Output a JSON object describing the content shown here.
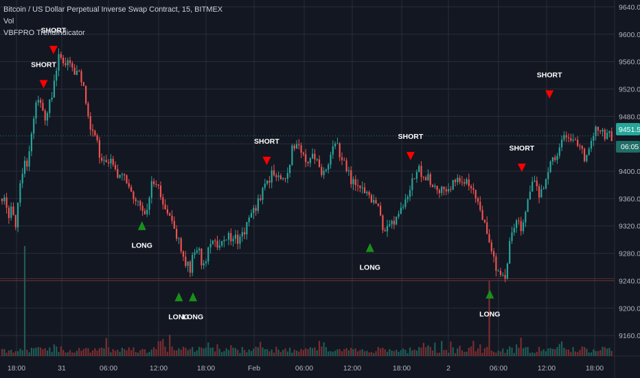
{
  "legend": {
    "symbol": "Bitcoin / US Dollar Perpetual Inverse Swap Contract, 15, BITMEX",
    "volume": "Vol",
    "indicator": "VBFPRO TrendIndicator"
  },
  "badges": {
    "last_price": "9451.5",
    "countdown": "06:05"
  },
  "colors": {
    "background": "#131722",
    "grid": "#2a2e39",
    "up": "#26a69a",
    "down": "#ef5350",
    "vol_up": "#1f5d56",
    "vol_down": "#7a2e30",
    "short_marker": "#ff0000",
    "long_marker": "#1b8f1b",
    "price_badge": "#26a69a",
    "axis_text": "#b2b5be"
  },
  "chart_data": {
    "type": "candlestick",
    "title": "Bitcoin / US Dollar Perpetual Inverse Swap Contract, 15, BITMEX",
    "ylim": [
      9130,
      9650
    ],
    "y_ticks": [
      9160.0,
      9200.0,
      9240.0,
      9280.0,
      9320.0,
      9360.0,
      9400.0,
      9440.0,
      9480.0,
      9520.0,
      9560.0,
      9600.0,
      9640.0
    ],
    "x_ticks": [
      "18:00",
      "31",
      "06:00",
      "12:00",
      "18:00",
      "Feb",
      "06:00",
      "12:00",
      "18:00",
      "2",
      "06:00",
      "12:00",
      "18:00"
    ],
    "price_path": [
      [
        0,
        9360
      ],
      [
        8,
        9370
      ],
      [
        12,
        9330
      ],
      [
        18,
        9345
      ],
      [
        23,
        9320
      ],
      [
        30,
        9380
      ],
      [
        35,
        9420
      ],
      [
        40,
        9410
      ],
      [
        45,
        9450
      ],
      [
        52,
        9505
      ],
      [
        58,
        9495
      ],
      [
        66,
        9480
      ],
      [
        72,
        9500
      ],
      [
        78,
        9520
      ],
      [
        85,
        9575
      ],
      [
        92,
        9555
      ],
      [
        100,
        9560
      ],
      [
        108,
        9545
      ],
      [
        115,
        9555
      ],
      [
        122,
        9520
      ],
      [
        130,
        9470
      ],
      [
        138,
        9455
      ],
      [
        145,
        9425
      ],
      [
        152,
        9410
      ],
      [
        160,
        9420
      ],
      [
        170,
        9395
      ],
      [
        180,
        9400
      ],
      [
        188,
        9380
      ],
      [
        195,
        9360
      ],
      [
        203,
        9350
      ],
      [
        210,
        9340
      ],
      [
        216,
        9350
      ],
      [
        222,
        9385
      ],
      [
        230,
        9375
      ],
      [
        238,
        9355
      ],
      [
        245,
        9340
      ],
      [
        252,
        9325
      ],
      [
        260,
        9300
      ],
      [
        266,
        9280
      ],
      [
        272,
        9265
      ],
      [
        278,
        9258
      ],
      [
        284,
        9290
      ],
      [
        290,
        9280
      ],
      [
        296,
        9255
      ],
      [
        303,
        9280
      ],
      [
        310,
        9305
      ],
      [
        318,
        9290
      ],
      [
        328,
        9300
      ],
      [
        338,
        9305
      ],
      [
        350,
        9300
      ],
      [
        358,
        9315
      ],
      [
        365,
        9330
      ],
      [
        372,
        9345
      ],
      [
        380,
        9365
      ],
      [
        388,
        9380
      ],
      [
        396,
        9400
      ],
      [
        402,
        9390
      ],
      [
        410,
        9385
      ],
      [
        418,
        9395
      ],
      [
        425,
        9430
      ],
      [
        432,
        9440
      ],
      [
        440,
        9420
      ],
      [
        448,
        9410
      ],
      [
        456,
        9420
      ],
      [
        464,
        9405
      ],
      [
        472,
        9400
      ],
      [
        480,
        9420
      ],
      [
        488,
        9440
      ],
      [
        494,
        9430
      ],
      [
        500,
        9410
      ],
      [
        508,
        9395
      ],
      [
        515,
        9380
      ],
      [
        522,
        9370
      ],
      [
        530,
        9375
      ],
      [
        538,
        9365
      ],
      [
        545,
        9350
      ],
      [
        552,
        9340
      ],
      [
        558,
        9315
      ],
      [
        565,
        9320
      ],
      [
        572,
        9320
      ],
      [
        580,
        9330
      ],
      [
        588,
        9350
      ],
      [
        596,
        9370
      ],
      [
        604,
        9395
      ],
      [
        610,
        9405
      ],
      [
        616,
        9395
      ],
      [
        622,
        9390
      ],
      [
        630,
        9380
      ],
      [
        638,
        9370
      ],
      [
        646,
        9375
      ],
      [
        655,
        9380
      ],
      [
        665,
        9385
      ],
      [
        675,
        9390
      ],
      [
        685,
        9380
      ],
      [
        693,
        9365
      ],
      [
        700,
        9345
      ],
      [
        706,
        9325
      ],
      [
        712,
        9300
      ],
      [
        718,
        9280
      ],
      [
        724,
        9255
      ],
      [
        730,
        9248
      ],
      [
        736,
        9238
      ],
      [
        742,
        9300
      ],
      [
        748,
        9320
      ],
      [
        754,
        9330
      ],
      [
        760,
        9310
      ],
      [
        766,
        9340
      ],
      [
        772,
        9375
      ],
      [
        778,
        9385
      ],
      [
        784,
        9365
      ],
      [
        790,
        9370
      ],
      [
        796,
        9385
      ],
      [
        802,
        9410
      ],
      [
        808,
        9420
      ],
      [
        814,
        9430
      ],
      [
        820,
        9450
      ],
      [
        826,
        9455
      ],
      [
        832,
        9445
      ],
      [
        838,
        9440
      ],
      [
        844,
        9430
      ],
      [
        852,
        9420
      ],
      [
        858,
        9440
      ],
      [
        865,
        9460
      ],
      [
        872,
        9465
      ],
      [
        880,
        9455
      ],
      [
        888,
        9450
      ],
      [
        895,
        9445
      ]
    ],
    "signals": [
      {
        "type": "SHORT",
        "label": "SHORT",
        "x_frac": 0.071,
        "price": 9525
      },
      {
        "type": "SHORT",
        "label": "SHORT",
        "x_frac": 0.087,
        "price": 9575
      },
      {
        "type": "LONG",
        "label": "LONG",
        "x_frac": 0.231,
        "price": 9322
      },
      {
        "type": "LONG",
        "label": "LONG",
        "x_frac": 0.291,
        "price": 9218
      },
      {
        "type": "LONG",
        "label": "LONG",
        "x_frac": 0.314,
        "price": 9218
      },
      {
        "type": "SHORT",
        "label": "SHORT",
        "x_frac": 0.434,
        "price": 9413
      },
      {
        "type": "LONG",
        "label": "LONG",
        "x_frac": 0.602,
        "price": 9290
      },
      {
        "type": "SHORT",
        "label": "SHORT",
        "x_frac": 0.668,
        "price": 9420
      },
      {
        "type": "LONG",
        "label": "LONG",
        "x_frac": 0.797,
        "price": 9222
      },
      {
        "type": "SHORT",
        "label": "SHORT",
        "x_frac": 0.849,
        "price": 9403
      },
      {
        "type": "SHORT",
        "label": "SHORT",
        "x_frac": 0.894,
        "price": 9510
      }
    ],
    "last_price": 9451.5,
    "volume_spike_frac": [
      0.039,
      0.795
    ]
  }
}
